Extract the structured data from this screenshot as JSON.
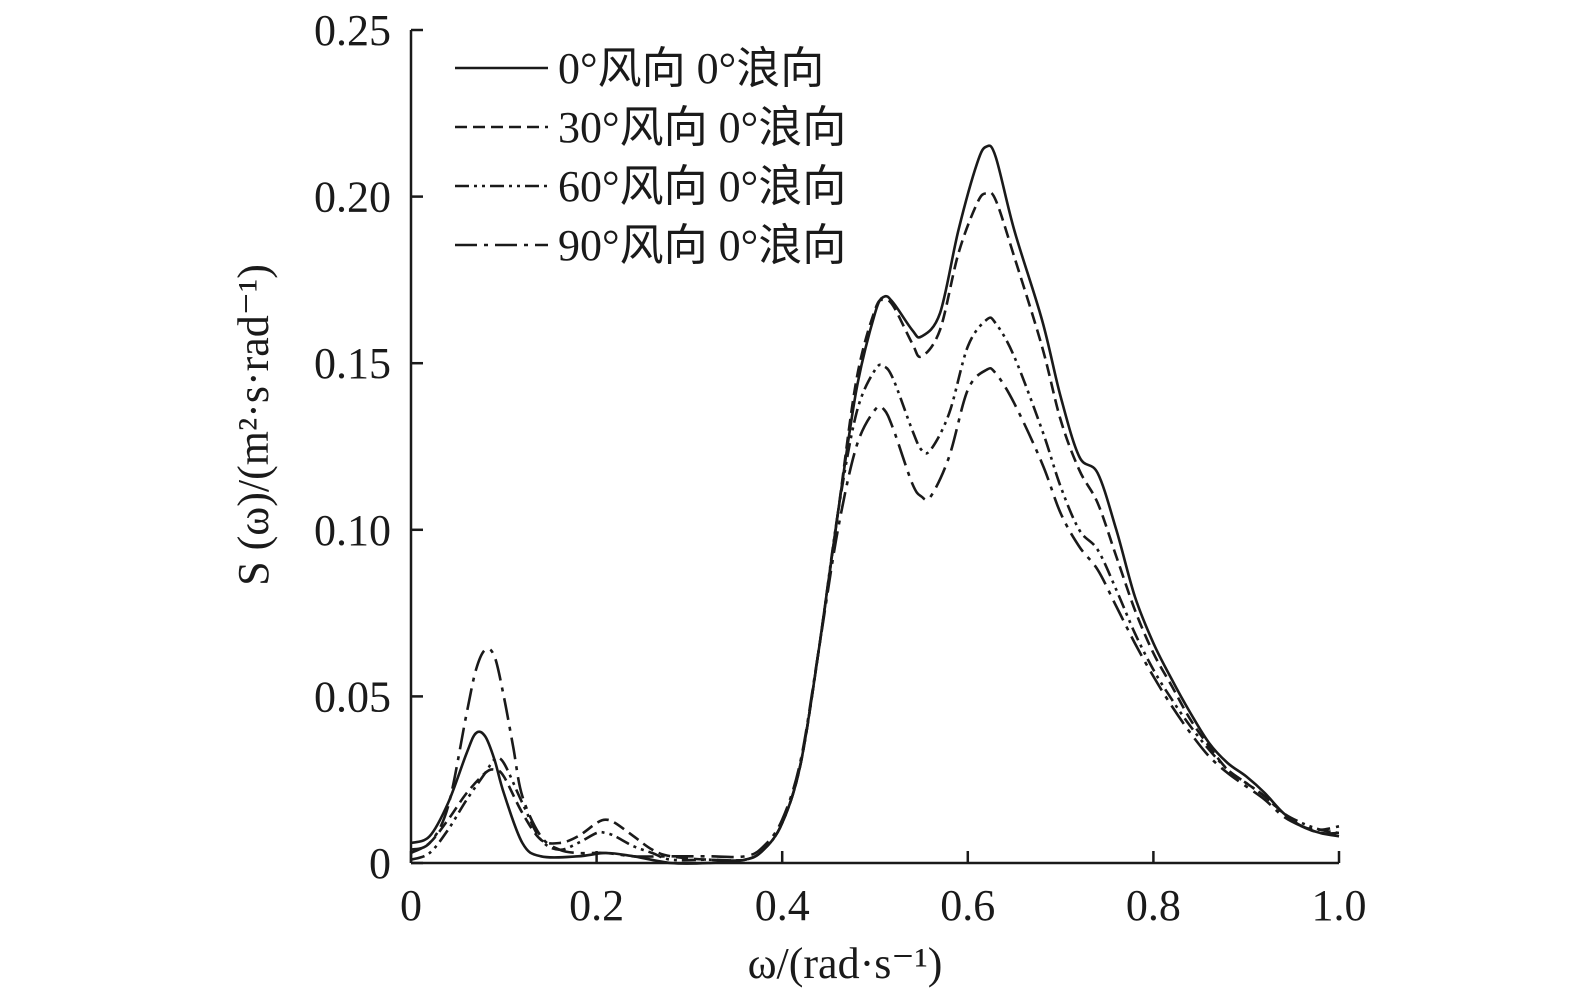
{
  "chart_data": {
    "type": "line",
    "title": "",
    "xlabel": "ω/(rad·s⁻¹)",
    "ylabel": "S (ω)/(m²·s·rad⁻¹)",
    "xlim": [
      0,
      1.0
    ],
    "ylim": [
      0,
      0.25
    ],
    "x_ticks": [
      0,
      0.2,
      0.4,
      0.6,
      0.8,
      1.0
    ],
    "x_tick_labels": [
      "0",
      "0.2",
      "0.4",
      "0.6",
      "0.8",
      "1.0"
    ],
    "y_ticks": [
      0,
      0.05,
      0.1,
      0.15,
      0.2,
      0.25
    ],
    "y_tick_labels": [
      "0",
      "0.05",
      "0.10",
      "0.15",
      "0.20",
      "0.25"
    ],
    "grid": false,
    "legend_position": "top-left",
    "series": [
      {
        "name": "0°风向 0°浪向",
        "line_style": "solid",
        "color": "#1a1a1a",
        "points": [
          [
            0.0,
            0.006
          ],
          [
            0.02,
            0.008
          ],
          [
            0.04,
            0.018
          ],
          [
            0.06,
            0.033
          ],
          [
            0.07,
            0.039
          ],
          [
            0.08,
            0.038
          ],
          [
            0.09,
            0.031
          ],
          [
            0.1,
            0.021
          ],
          [
            0.12,
            0.006
          ],
          [
            0.14,
            0.002
          ],
          [
            0.18,
            0.002
          ],
          [
            0.21,
            0.003
          ],
          [
            0.24,
            0.002
          ],
          [
            0.28,
            0.0
          ],
          [
            0.32,
            0.0
          ],
          [
            0.36,
            0.001
          ],
          [
            0.38,
            0.004
          ],
          [
            0.4,
            0.012
          ],
          [
            0.42,
            0.03
          ],
          [
            0.44,
            0.065
          ],
          [
            0.46,
            0.105
          ],
          [
            0.48,
            0.142
          ],
          [
            0.5,
            0.165
          ],
          [
            0.51,
            0.17
          ],
          [
            0.52,
            0.168
          ],
          [
            0.54,
            0.16
          ],
          [
            0.55,
            0.158
          ],
          [
            0.57,
            0.165
          ],
          [
            0.59,
            0.19
          ],
          [
            0.61,
            0.21
          ],
          [
            0.62,
            0.215
          ],
          [
            0.63,
            0.212
          ],
          [
            0.65,
            0.19
          ],
          [
            0.68,
            0.163
          ],
          [
            0.7,
            0.14
          ],
          [
            0.72,
            0.122
          ],
          [
            0.74,
            0.117
          ],
          [
            0.76,
            0.1
          ],
          [
            0.78,
            0.08
          ],
          [
            0.8,
            0.066
          ],
          [
            0.82,
            0.055
          ],
          [
            0.84,
            0.045
          ],
          [
            0.86,
            0.036
          ],
          [
            0.88,
            0.03
          ],
          [
            0.9,
            0.026
          ],
          [
            0.92,
            0.021
          ],
          [
            0.94,
            0.015
          ],
          [
            0.96,
            0.011
          ],
          [
            0.98,
            0.009
          ],
          [
            1.0,
            0.008
          ]
        ]
      },
      {
        "name": "30°风向 0°浪向",
        "line_style": "dashed",
        "color": "#1a1a1a",
        "points": [
          [
            0.0,
            0.003
          ],
          [
            0.02,
            0.006
          ],
          [
            0.04,
            0.013
          ],
          [
            0.06,
            0.021
          ],
          [
            0.08,
            0.027
          ],
          [
            0.09,
            0.028
          ],
          [
            0.1,
            0.026
          ],
          [
            0.12,
            0.015
          ],
          [
            0.14,
            0.007
          ],
          [
            0.16,
            0.006
          ],
          [
            0.18,
            0.008
          ],
          [
            0.2,
            0.012
          ],
          [
            0.21,
            0.013
          ],
          [
            0.22,
            0.012
          ],
          [
            0.24,
            0.008
          ],
          [
            0.26,
            0.004
          ],
          [
            0.28,
            0.002
          ],
          [
            0.32,
            0.001
          ],
          [
            0.36,
            0.001
          ],
          [
            0.38,
            0.004
          ],
          [
            0.4,
            0.012
          ],
          [
            0.42,
            0.03
          ],
          [
            0.44,
            0.065
          ],
          [
            0.46,
            0.105
          ],
          [
            0.48,
            0.145
          ],
          [
            0.5,
            0.166
          ],
          [
            0.51,
            0.169
          ],
          [
            0.52,
            0.167
          ],
          [
            0.54,
            0.156
          ],
          [
            0.55,
            0.152
          ],
          [
            0.57,
            0.16
          ],
          [
            0.59,
            0.183
          ],
          [
            0.61,
            0.198
          ],
          [
            0.62,
            0.201
          ],
          [
            0.63,
            0.199
          ],
          [
            0.65,
            0.182
          ],
          [
            0.68,
            0.155
          ],
          [
            0.7,
            0.133
          ],
          [
            0.72,
            0.118
          ],
          [
            0.74,
            0.108
          ],
          [
            0.76,
            0.092
          ],
          [
            0.78,
            0.076
          ],
          [
            0.8,
            0.063
          ],
          [
            0.82,
            0.053
          ],
          [
            0.84,
            0.043
          ],
          [
            0.86,
            0.035
          ],
          [
            0.88,
            0.028
          ],
          [
            0.9,
            0.024
          ],
          [
            0.92,
            0.02
          ],
          [
            0.94,
            0.015
          ],
          [
            0.96,
            0.011
          ],
          [
            0.98,
            0.01
          ],
          [
            1.0,
            0.011
          ]
        ]
      },
      {
        "name": "60°风向 0°浪向",
        "line_style": "dash-dot-dot",
        "color": "#1a1a1a",
        "points": [
          [
            0.0,
            0.001
          ],
          [
            0.02,
            0.003
          ],
          [
            0.04,
            0.01
          ],
          [
            0.06,
            0.019
          ],
          [
            0.08,
            0.027
          ],
          [
            0.09,
            0.031
          ],
          [
            0.1,
            0.03
          ],
          [
            0.12,
            0.018
          ],
          [
            0.14,
            0.007
          ],
          [
            0.16,
            0.004
          ],
          [
            0.18,
            0.006
          ],
          [
            0.2,
            0.009
          ],
          [
            0.21,
            0.009
          ],
          [
            0.22,
            0.008
          ],
          [
            0.24,
            0.005
          ],
          [
            0.26,
            0.003
          ],
          [
            0.28,
            0.001
          ],
          [
            0.32,
            0.001
          ],
          [
            0.36,
            0.001
          ],
          [
            0.38,
            0.004
          ],
          [
            0.4,
            0.012
          ],
          [
            0.42,
            0.03
          ],
          [
            0.44,
            0.065
          ],
          [
            0.46,
            0.105
          ],
          [
            0.48,
            0.135
          ],
          [
            0.5,
            0.148
          ],
          [
            0.51,
            0.149
          ],
          [
            0.52,
            0.145
          ],
          [
            0.54,
            0.13
          ],
          [
            0.55,
            0.124
          ],
          [
            0.56,
            0.124
          ],
          [
            0.58,
            0.135
          ],
          [
            0.6,
            0.155
          ],
          [
            0.62,
            0.163
          ],
          [
            0.63,
            0.162
          ],
          [
            0.65,
            0.152
          ],
          [
            0.68,
            0.13
          ],
          [
            0.7,
            0.113
          ],
          [
            0.72,
            0.1
          ],
          [
            0.74,
            0.094
          ],
          [
            0.76,
            0.082
          ],
          [
            0.78,
            0.069
          ],
          [
            0.8,
            0.058
          ],
          [
            0.82,
            0.049
          ],
          [
            0.84,
            0.041
          ],
          [
            0.86,
            0.034
          ],
          [
            0.88,
            0.028
          ],
          [
            0.9,
            0.024
          ],
          [
            0.92,
            0.02
          ],
          [
            0.94,
            0.015
          ],
          [
            0.96,
            0.012
          ],
          [
            0.98,
            0.01
          ],
          [
            1.0,
            0.009
          ]
        ]
      },
      {
        "name": "90°风向 0°浪向",
        "line_style": "dash-dot",
        "color": "#1a1a1a",
        "points": [
          [
            0.0,
            0.004
          ],
          [
            0.02,
            0.006
          ],
          [
            0.04,
            0.017
          ],
          [
            0.06,
            0.045
          ],
          [
            0.07,
            0.058
          ],
          [
            0.08,
            0.064
          ],
          [
            0.09,
            0.062
          ],
          [
            0.1,
            0.05
          ],
          [
            0.11,
            0.035
          ],
          [
            0.12,
            0.02
          ],
          [
            0.14,
            0.008
          ],
          [
            0.16,
            0.004
          ],
          [
            0.18,
            0.003
          ],
          [
            0.21,
            0.003
          ],
          [
            0.24,
            0.002
          ],
          [
            0.28,
            0.002
          ],
          [
            0.32,
            0.002
          ],
          [
            0.36,
            0.002
          ],
          [
            0.38,
            0.005
          ],
          [
            0.4,
            0.013
          ],
          [
            0.42,
            0.031
          ],
          [
            0.44,
            0.065
          ],
          [
            0.46,
            0.1
          ],
          [
            0.48,
            0.125
          ],
          [
            0.5,
            0.136
          ],
          [
            0.51,
            0.136
          ],
          [
            0.52,
            0.13
          ],
          [
            0.54,
            0.114
          ],
          [
            0.55,
            0.11
          ],
          [
            0.56,
            0.11
          ],
          [
            0.58,
            0.122
          ],
          [
            0.6,
            0.142
          ],
          [
            0.62,
            0.148
          ],
          [
            0.63,
            0.147
          ],
          [
            0.65,
            0.138
          ],
          [
            0.68,
            0.12
          ],
          [
            0.7,
            0.105
          ],
          [
            0.72,
            0.095
          ],
          [
            0.74,
            0.088
          ],
          [
            0.76,
            0.077
          ],
          [
            0.78,
            0.066
          ],
          [
            0.8,
            0.056
          ],
          [
            0.82,
            0.047
          ],
          [
            0.84,
            0.039
          ],
          [
            0.86,
            0.032
          ],
          [
            0.88,
            0.027
          ],
          [
            0.9,
            0.023
          ],
          [
            0.92,
            0.019
          ],
          [
            0.94,
            0.014
          ],
          [
            0.96,
            0.011
          ],
          [
            0.98,
            0.009
          ],
          [
            1.0,
            0.009
          ]
        ]
      }
    ]
  }
}
